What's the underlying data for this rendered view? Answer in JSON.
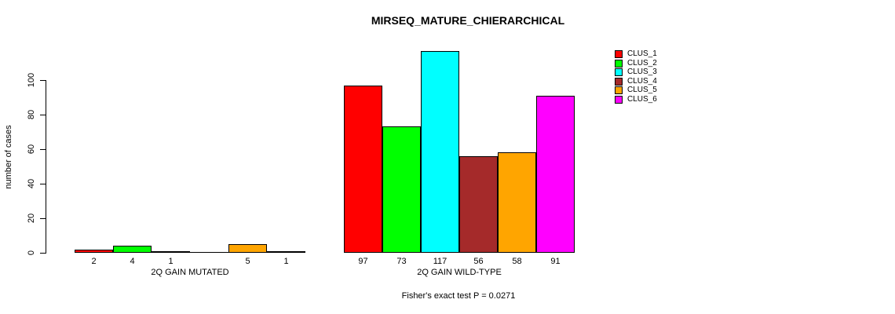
{
  "chart_data": {
    "type": "bar",
    "title": "MIRSEQ_MATURE_CHIERARCHICAL",
    "ylabel": "number of cases",
    "ylim": [
      0,
      100
    ],
    "yticks": [
      0,
      20,
      40,
      60,
      80,
      100
    ],
    "grid": false,
    "legend_position": "top-right",
    "legend_entries": [
      {
        "label": "CLUS_1",
        "color": "#FF0000"
      },
      {
        "label": "CLUS_2",
        "color": "#00FF00"
      },
      {
        "label": "CLUS_3",
        "color": "#00FFFF"
      },
      {
        "label": "CLUS_4",
        "color": "#A52A2A"
      },
      {
        "label": "CLUS_5",
        "color": "#FFA500"
      },
      {
        "label": "CLUS_6",
        "color": "#FF00FF"
      }
    ],
    "groups": [
      {
        "label": "2Q GAIN MUTATED",
        "values": [
          2,
          4,
          1,
          0,
          5,
          1
        ],
        "bar_labels": [
          "2",
          "4",
          "1",
          "",
          "5",
          "1"
        ]
      },
      {
        "label": "2Q GAIN WILD-TYPE",
        "values": [
          97,
          73,
          117,
          56,
          58,
          91
        ],
        "bar_labels": [
          "97",
          "73",
          "117",
          "56",
          "58",
          "91"
        ]
      }
    ],
    "annotation": "Fisher's exact test P = 0.0271"
  }
}
